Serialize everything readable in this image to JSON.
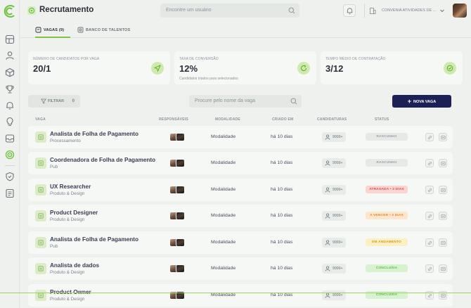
{
  "app": {
    "title": "Recrutamento"
  },
  "header": {
    "user_search_placeholder": "Encontre um usuário",
    "company": "CONVENIA ATIVIDADES DE ..."
  },
  "tabs": [
    {
      "label": "VAGAS (9)",
      "active": true
    },
    {
      "label": "BANCO DE TALENTOS",
      "active": false
    }
  ],
  "stats": [
    {
      "label": "NÚMERO DE CANDIDATOS POR VAGA",
      "value": "20/1",
      "sub": ""
    },
    {
      "label": "TAXA DE CONVERSÃO",
      "value": "12%",
      "sub": "Candidatos triados para selecionados"
    },
    {
      "label": "TEMPO MÉDIO DE CONTRATAÇÃO",
      "value": "3/12",
      "sub": ""
    }
  ],
  "toolbar": {
    "filter_label": "FILTRAR",
    "filter_count": "0",
    "job_search_placeholder": "Procure pelo nome da vaga",
    "new_job_label": "NOVA VAGA"
  },
  "table": {
    "headers": {
      "vaga": "VAGA",
      "responsaveis": "RESPONSÁVEIS",
      "modalidade": "MODALIDADE",
      "criado": "CRIADO EM",
      "candidaturas": "CANDIDATURAS",
      "status": "STATUS"
    },
    "rows": [
      {
        "title": "Analista de Folha de Pagamento",
        "sub": "Processamento",
        "mod": "Modalidade",
        "date": "há 10 dias",
        "cand": "9999+",
        "status": "RASCUNHO"
      },
      {
        "title": "Coordenadora de Folha de Pagamento",
        "sub": "Pub",
        "mod": "Modalidade",
        "date": "há 10 dias",
        "cand": "9999+",
        "status": "RASCUNHO"
      },
      {
        "title": "UX Researcher",
        "sub": "Produto & Design",
        "mod": "Modalidade",
        "date": "há 10 dias",
        "cand": "9999+",
        "status": "ATRASADA • 3 DIAS"
      },
      {
        "title": "Product Designer",
        "sub": "Produto & Design",
        "mod": "Modalidade",
        "date": "há 10 dias",
        "cand": "9999+",
        "status": "A VENCER • 3 DIAS"
      },
      {
        "title": "Analista de Folha de Pagamento",
        "sub": "Pub",
        "mod": "Modalidade",
        "date": "há 10 dias",
        "cand": "9999+",
        "status": "EM ANDAMENTO"
      },
      {
        "title": "Analista de dados",
        "sub": "Produto & Design",
        "mod": "Modalidade",
        "date": "há 10 dias",
        "cand": "9999+",
        "status": "CONCLUÍDA"
      },
      {
        "title": "Product Owner",
        "sub": "Produto & Design",
        "mod": "Modalidade",
        "date": "há 10 dias",
        "cand": "9999+",
        "status": "CONCLUÍDA"
      }
    ]
  },
  "colors": {
    "accent": "#7cc444",
    "primary": "#1b2155"
  },
  "icons": {
    "sidebar": [
      "dashboard-icon",
      "person-icon",
      "box-icon",
      "trophy-icon",
      "bell-icon",
      "bulb-icon",
      "inbox-icon",
      "target-icon",
      "shield-icon",
      "document-icon"
    ]
  }
}
